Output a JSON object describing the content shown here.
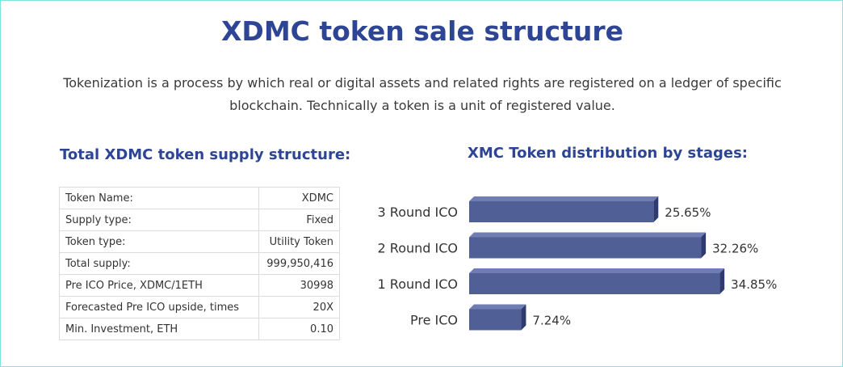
{
  "page": {
    "title": "XDMC token sale structure",
    "intro": "Tokenization is a process by which real or digital assets and related rights are registered on a ledger of specific blockchain. Technically a token is a unit of registered value."
  },
  "supply": {
    "title": "Total XDMC token supply structure:",
    "rows": [
      {
        "key": "Token Name:",
        "value": "XDMC"
      },
      {
        "key": "Supply type:",
        "value": "Fixed"
      },
      {
        "key": "Token type:",
        "value": "Utility Token"
      },
      {
        "key": "Total supply:",
        "value": "999,950,416"
      },
      {
        "key": "Pre ICO Price, XDMC/1ETH",
        "value": "30998"
      },
      {
        "key": "Forecasted Pre ICO upside, times",
        "value": "20X"
      },
      {
        "key": "Min. Investment, ETH",
        "value": "0.10"
      }
    ]
  },
  "colors": {
    "bar_face": "#505f96",
    "bar_top": "#6f7db3",
    "bar_side": "#2f3b6e",
    "heading": "#2e4596"
  },
  "chart_data": {
    "type": "bar",
    "orientation": "horizontal",
    "title": "XMC Token distribution by stages:",
    "categories": [
      "3 Round ICO",
      "2 Round ICO",
      "1 Round ICO",
      "Pre ICO"
    ],
    "values": [
      25.65,
      32.26,
      34.85,
      7.24
    ],
    "value_labels": [
      "25.65%",
      "32.26%",
      "34.85%",
      "7.24%"
    ],
    "xlim": [
      0,
      36
    ],
    "grid": false,
    "style": "3d"
  }
}
